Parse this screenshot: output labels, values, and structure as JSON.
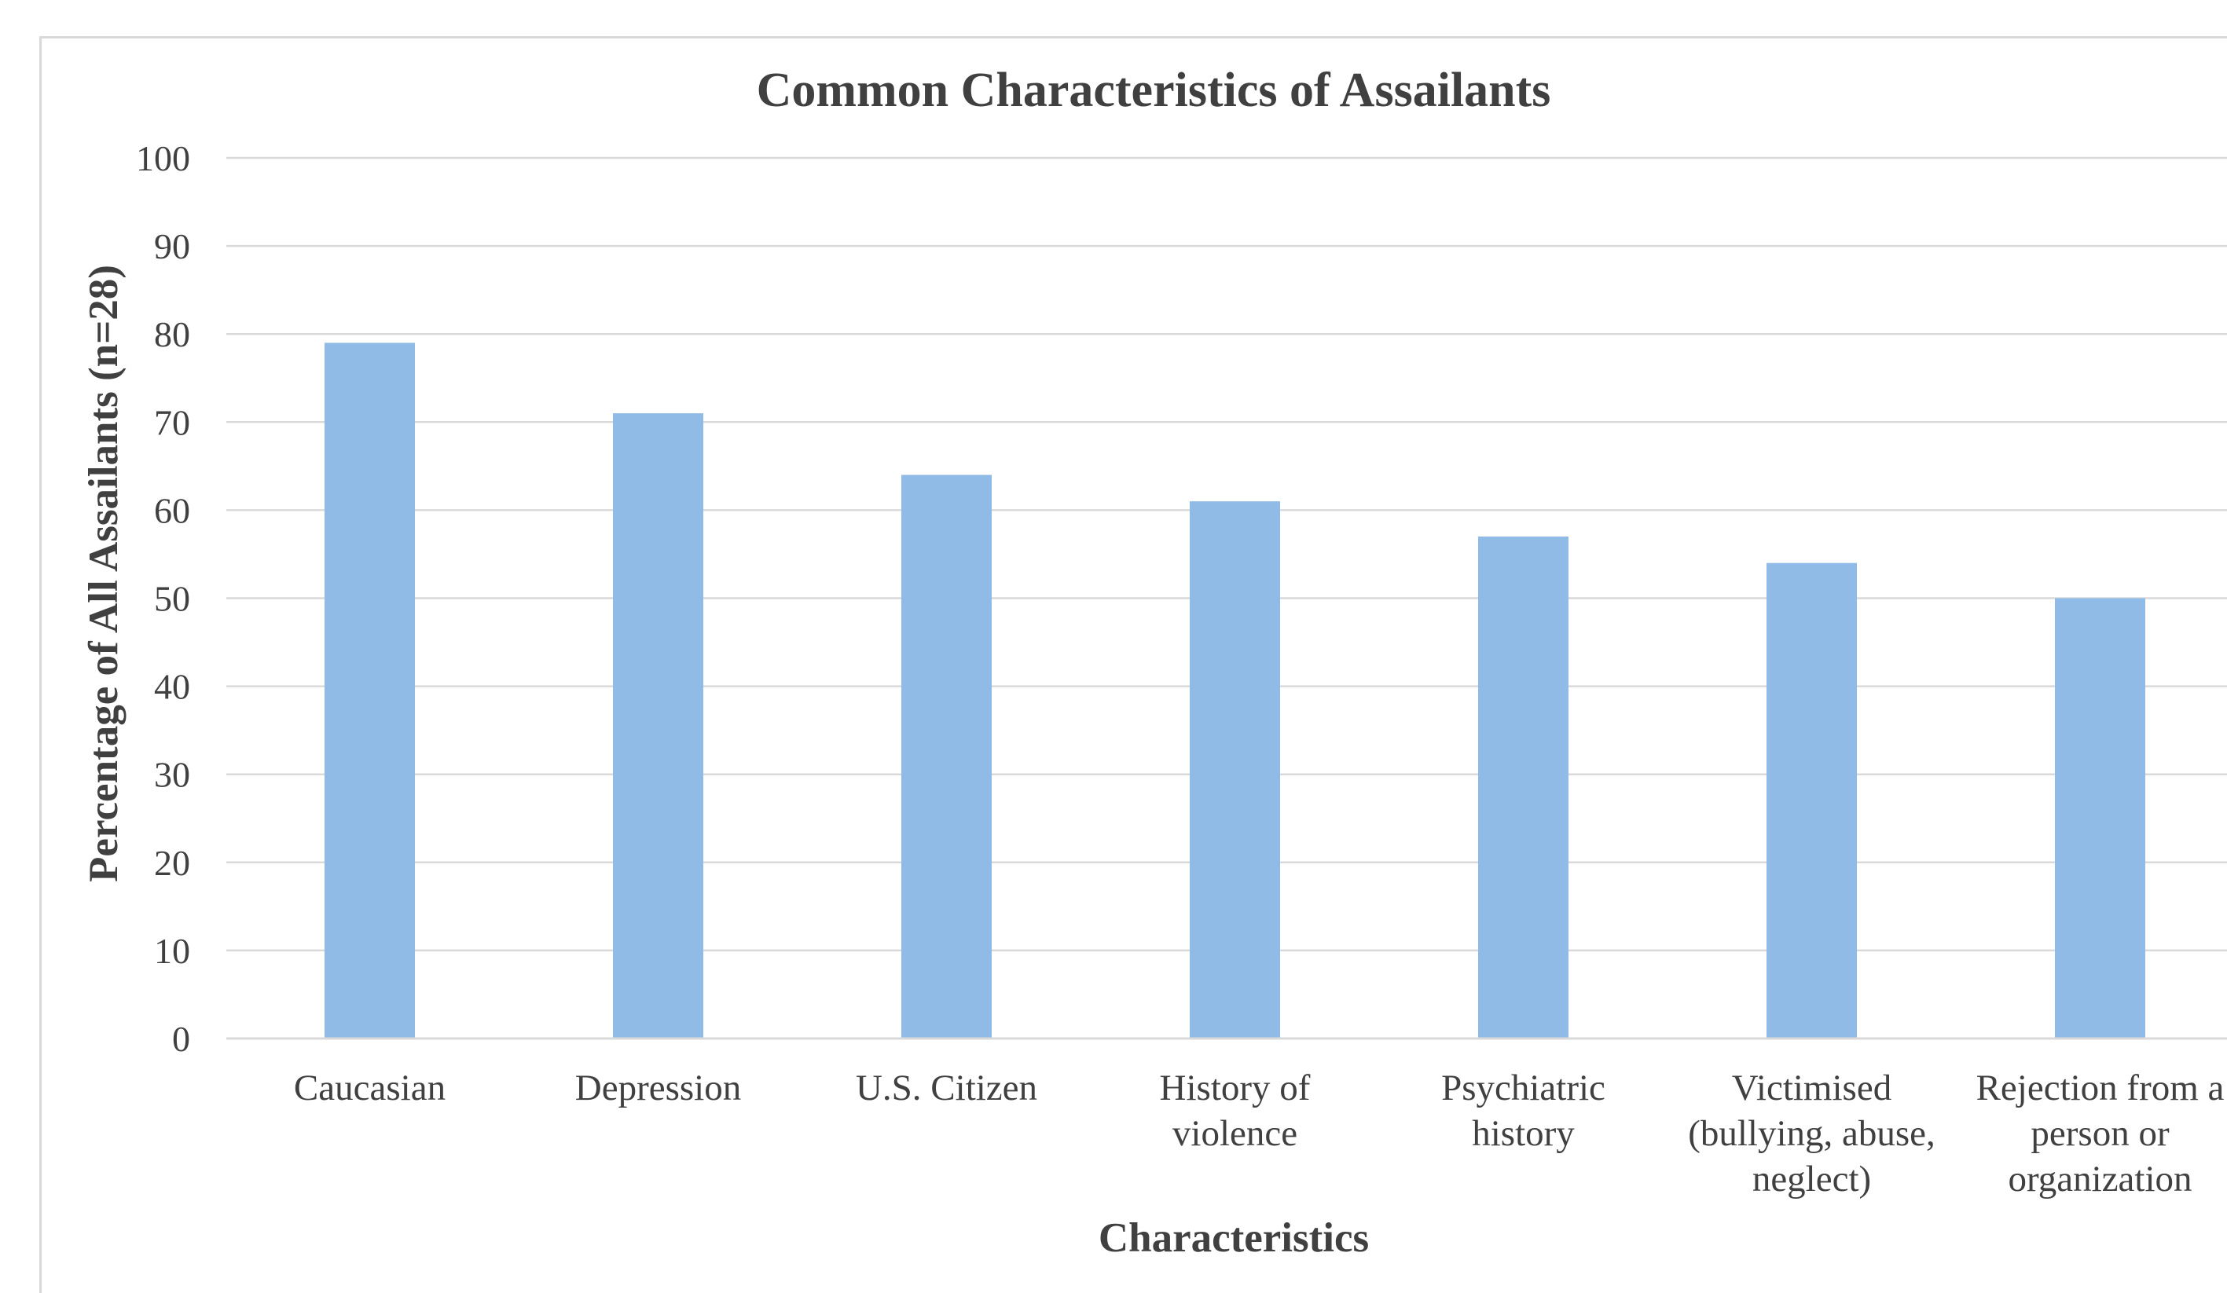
{
  "chart_data": {
    "type": "bar",
    "title": "Common Characteristics of Assailants",
    "xlabel": "Characteristics",
    "ylabel": "Percentage of All Assailants (n=28)",
    "ylim": [
      0,
      100
    ],
    "yticks": [
      "0",
      "10",
      "20",
      "30",
      "40",
      "50",
      "60",
      "70",
      "80",
      "90",
      "100"
    ],
    "grid": true,
    "bar_color": "#8fbbe6",
    "categories": [
      "Caucasian",
      "Depression",
      "U.S. Citizen",
      "History of violence",
      "Psychiatric history",
      "Victimised (bullying, abuse, neglect)",
      "Rejection from a person or organization"
    ],
    "category_lines": [
      [
        "Caucasian"
      ],
      [
        "Depression"
      ],
      [
        "U.S. Citizen"
      ],
      [
        "History of",
        "violence"
      ],
      [
        "Psychiatric",
        "history"
      ],
      [
        "Victimised",
        "(bullying, abuse,",
        "neglect)"
      ],
      [
        "Rejection from a",
        "person or",
        "organization"
      ]
    ],
    "values": [
      79,
      71,
      64,
      61,
      57,
      54,
      50
    ]
  }
}
